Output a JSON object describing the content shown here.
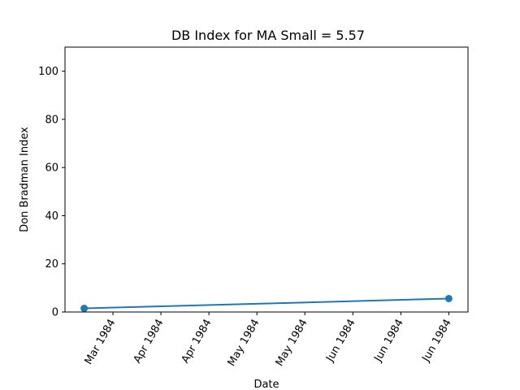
{
  "chart_data": {
    "type": "line",
    "title": "DB Index for MA Small = 5.57",
    "xlabel": "Date",
    "ylabel": "Don Bradman Index",
    "ylim": [
      0,
      110
    ],
    "yticks": [
      0,
      20,
      40,
      60,
      80,
      100
    ],
    "xlim": [
      "1984-02-15",
      "1984-06-20"
    ],
    "xticks": [
      {
        "date": "1984-03-01",
        "label": "Mar 1984"
      },
      {
        "date": "1984-03-16",
        "label": "Apr 1984"
      },
      {
        "date": "1984-03-31",
        "label": "Apr 1984"
      },
      {
        "date": "1984-04-15",
        "label": "May 1984"
      },
      {
        "date": "1984-04-30",
        "label": "May 1984"
      },
      {
        "date": "1984-05-15",
        "label": "Jun 1984"
      },
      {
        "date": "1984-05-30",
        "label": "Jun 1984"
      },
      {
        "date": "1984-06-14",
        "label": "Jun 1984"
      }
    ],
    "series": [
      {
        "name": "",
        "color": "#1f77b4",
        "points": [
          {
            "x": "1984-02-21",
            "y": 1.5
          },
          {
            "x": "1984-06-14",
            "y": 5.57
          }
        ]
      }
    ],
    "grid": false,
    "legend": "none"
  }
}
